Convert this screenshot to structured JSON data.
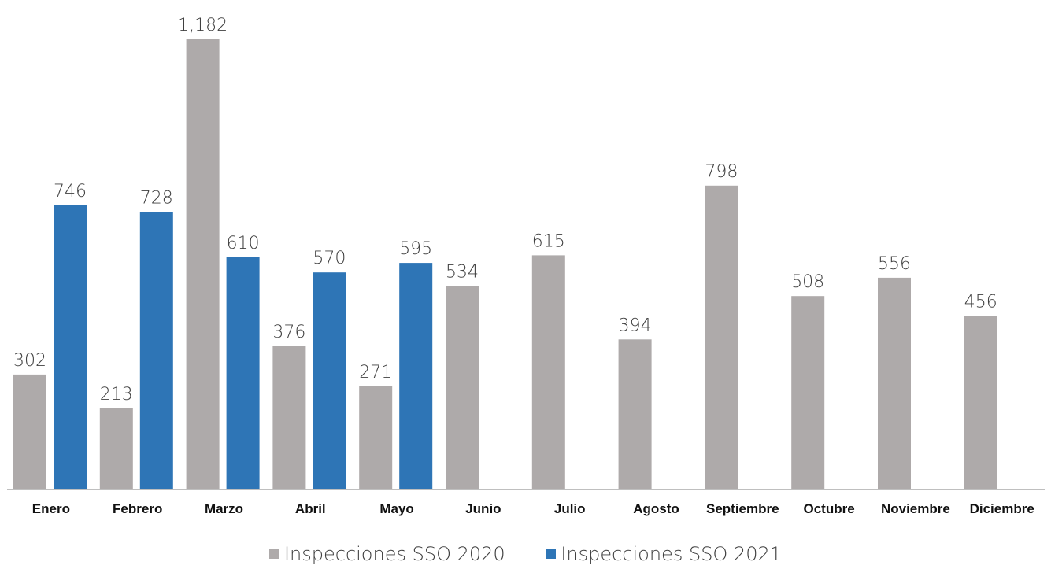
{
  "chart_data": {
    "type": "bar",
    "categories": [
      "Enero",
      "Febrero",
      "Marzo",
      "Abril",
      "Mayo",
      "Junio",
      "Julio",
      "Agosto",
      "Septiembre",
      "Octubre",
      "Noviembre",
      "Diciembre"
    ],
    "series": [
      {
        "name": "Inspecciones SSO  2020",
        "color": "#aeaaaa",
        "values": [
          302,
          213,
          1182,
          376,
          271,
          534,
          615,
          394,
          798,
          508,
          556,
          456
        ],
        "labels": [
          "302",
          "213",
          "1,182",
          "376",
          "271",
          "534",
          "615",
          "394",
          "798",
          "508",
          "556",
          "456"
        ]
      },
      {
        "name": "Inspecciones  SSO 2021",
        "color": "#2e75b6",
        "values": [
          746,
          728,
          610,
          570,
          595,
          null,
          null,
          null,
          null,
          null,
          null,
          null
        ],
        "labels": [
          "746",
          "728",
          "610",
          "570",
          "595",
          "",
          "",
          "",
          "",
          "",
          "",
          ""
        ]
      }
    ],
    "ylim": [
      0,
      1182
    ],
    "grid": false,
    "legend_position": "bottom",
    "axis_color": "#bfbfbf"
  }
}
